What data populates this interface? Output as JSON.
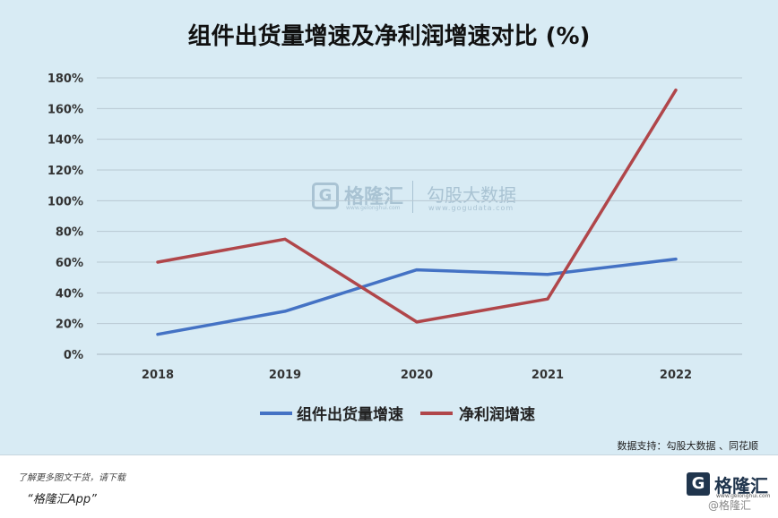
{
  "chart_data": {
    "type": "line",
    "title": "组件出货量增速及净利润增速对比 (%)",
    "categories": [
      "2018",
      "2019",
      "2020",
      "2021",
      "2022"
    ],
    "series": [
      {
        "name": "组件出货量增速",
        "color": "#4472c4",
        "values": [
          13,
          28,
          55,
          52,
          62
        ]
      },
      {
        "name": "净利润增速",
        "color": "#b0464a",
        "values": [
          60,
          75,
          21,
          36,
          172
        ]
      }
    ],
    "yticks": [
      "0%",
      "20%",
      "40%",
      "60%",
      "80%",
      "100%",
      "120%",
      "140%",
      "160%",
      "180%"
    ],
    "ylim": [
      0,
      180
    ],
    "grid": true,
    "legend": "bottom"
  },
  "source": "数据支持：勾股大数据 、同花顺",
  "watermark": {
    "logo_letter": "G",
    "name": "格隆汇",
    "url1": "www.gelonghui.com",
    "cn": "勾股大数据",
    "url2": "www.gogudata.com"
  },
  "footer": {
    "text": "了解更多图文干货，请下载",
    "app": "“格隆汇App”",
    "logo_letter": "G",
    "logo_text": "格隆汇",
    "logo_sub": "www.gelonghui.com",
    "brand_tag": "@格隆汇"
  }
}
